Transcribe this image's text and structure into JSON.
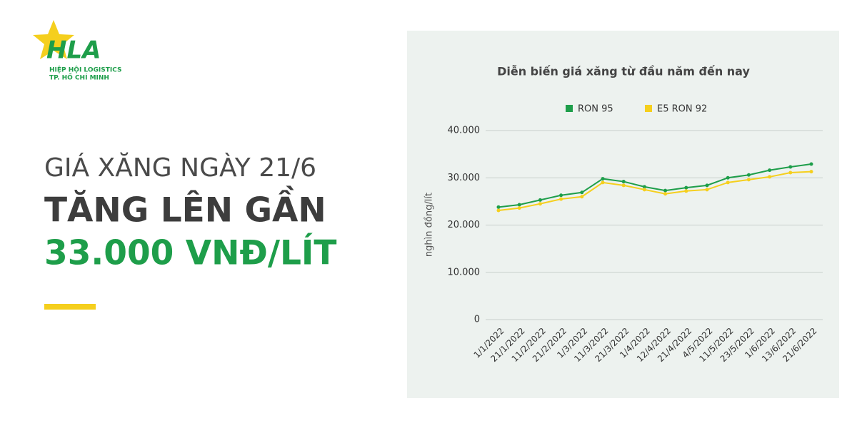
{
  "logo": {
    "name": "HLA",
    "line1": "HIỆP HỘI LOGISTICS",
    "line2": "TP. HỒ CHÍ MINH"
  },
  "headline": [
    "GIÁ XĂNG NGÀY 21/6",
    "TĂNG LÊN GẦN",
    "33.000 VNĐ/LÍT"
  ],
  "chart_data": {
    "type": "line",
    "title": "Diễn biến giá xăng từ đầu năm đến nay",
    "y_label": "nghìn đồng/lít",
    "categories": [
      "1/1/2022",
      "21/1/2022",
      "11/2/2022",
      "21/2/2022",
      "1/3/2022",
      "11/3/2022",
      "21/3/2022",
      "1/4/2022",
      "12/4/2022",
      "21/4/2022",
      "4/5/2022",
      "11/5/2022",
      "23/5/2022",
      "1/6/2022",
      "13/6/2022",
      "21/6/2022"
    ],
    "series": [
      {
        "name": "RON 95",
        "color": "#1e9e4a",
        "values": [
          23800,
          24300,
          25300,
          26300,
          26900,
          29800,
          29200,
          28100,
          27300,
          27900,
          28400,
          30000,
          30600,
          31600,
          32300,
          32900
        ]
      },
      {
        "name": "E5 RON 92",
        "color": "#f5cf1d",
        "values": [
          23100,
          23600,
          24500,
          25500,
          26000,
          29000,
          28400,
          27500,
          26600,
          27200,
          27500,
          29000,
          29600,
          30200,
          31100,
          31300
        ]
      }
    ],
    "ylim": [
      0,
      40000
    ],
    "yticks": [
      0,
      {
        "value": 10000,
        "label": "10.000"
      },
      {
        "value": 20000,
        "label": "20.000"
      },
      {
        "value": 30000,
        "label": "30.000"
      },
      {
        "value": 40000,
        "label": "40.000"
      }
    ],
    "grid": true,
    "legend": "top"
  }
}
